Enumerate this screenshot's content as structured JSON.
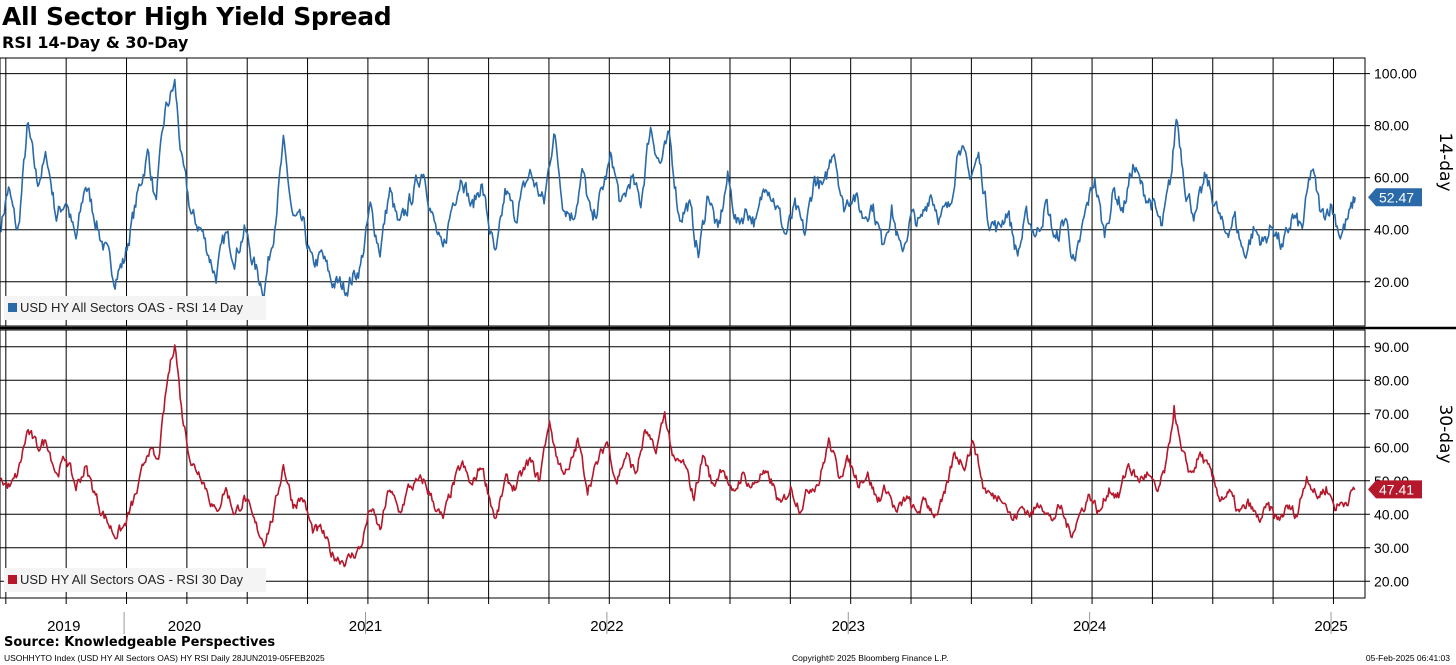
{
  "header": {
    "title": "All Sector High Yield Spread",
    "subtitle": "RSI 14-Day & 30-Day"
  },
  "footer": {
    "source": "Source: Knowledgeable Perspectives",
    "index_info": "USOHHYTO Index (USD HY All Sectors OAS) HY RSI  Daily 28JUN2019-05FEB2025",
    "copyright": "Copyright© 2025 Bloomberg Finance L.P.",
    "timestamp": "05-Feb-2025 06:41:03"
  },
  "colors": {
    "series_14": "#2a6aa8",
    "series_30": "#b5172b",
    "grid": "#000000"
  },
  "chart_data": [
    {
      "type": "line",
      "id": "rsi14",
      "side_label": "14-day",
      "legend": "USD HY All Sectors OAS - RSI 14 Day",
      "last_value_label": "52.47",
      "ylim": [
        3,
        106
      ],
      "yticks": [
        20,
        40,
        60,
        80,
        100
      ],
      "ytick_labels": [
        "20.00",
        "40.00",
        "60.00",
        "80.00",
        "100.00"
      ],
      "x_start": 2019.49,
      "x_end": 2025.1,
      "anchors": [
        [
          2019.49,
          42
        ],
        [
          2019.52,
          56
        ],
        [
          2019.56,
          38
        ],
        [
          2019.6,
          80
        ],
        [
          2019.64,
          58
        ],
        [
          2019.68,
          68
        ],
        [
          2019.72,
          45
        ],
        [
          2019.76,
          52
        ],
        [
          2019.8,
          35
        ],
        [
          2019.84,
          58
        ],
        [
          2019.9,
          38
        ],
        [
          2019.96,
          22
        ],
        [
          2020.0,
          28
        ],
        [
          2020.06,
          55
        ],
        [
          2020.1,
          70
        ],
        [
          2020.13,
          50
        ],
        [
          2020.17,
          85
        ],
        [
          2020.21,
          96
        ],
        [
          2020.24,
          65
        ],
        [
          2020.28,
          45
        ],
        [
          2020.32,
          40
        ],
        [
          2020.38,
          22
        ],
        [
          2020.42,
          38
        ],
        [
          2020.46,
          30
        ],
        [
          2020.5,
          40
        ],
        [
          2020.54,
          26
        ],
        [
          2020.58,
          17
        ],
        [
          2020.62,
          40
        ],
        [
          2020.66,
          72
        ],
        [
          2020.7,
          44
        ],
        [
          2020.74,
          42
        ],
        [
          2020.78,
          26
        ],
        [
          2020.82,
          30
        ],
        [
          2020.86,
          20
        ],
        [
          2020.92,
          18
        ],
        [
          2020.98,
          26
        ],
        [
          2021.02,
          48
        ],
        [
          2021.06,
          32
        ],
        [
          2021.1,
          55
        ],
        [
          2021.14,
          40
        ],
        [
          2021.18,
          50
        ],
        [
          2021.24,
          64
        ],
        [
          2021.28,
          44
        ],
        [
          2021.32,
          30
        ],
        [
          2021.36,
          50
        ],
        [
          2021.4,
          62
        ],
        [
          2021.44,
          48
        ],
        [
          2021.48,
          58
        ],
        [
          2021.54,
          28
        ],
        [
          2021.58,
          55
        ],
        [
          2021.62,
          45
        ],
        [
          2021.68,
          62
        ],
        [
          2021.74,
          50
        ],
        [
          2021.78,
          78
        ],
        [
          2021.82,
          50
        ],
        [
          2021.86,
          45
        ],
        [
          2021.9,
          62
        ],
        [
          2021.94,
          42
        ],
        [
          2021.98,
          55
        ],
        [
          2022.02,
          68
        ],
        [
          2022.06,
          48
        ],
        [
          2022.1,
          60
        ],
        [
          2022.14,
          50
        ],
        [
          2022.18,
          80
        ],
        [
          2022.22,
          65
        ],
        [
          2022.26,
          75
        ],
        [
          2022.3,
          45
        ],
        [
          2022.34,
          50
        ],
        [
          2022.38,
          30
        ],
        [
          2022.42,
          55
        ],
        [
          2022.46,
          38
        ],
        [
          2022.5,
          60
        ],
        [
          2022.54,
          42
        ],
        [
          2022.58,
          48
        ],
        [
          2022.62,
          42
        ],
        [
          2022.66,
          60
        ],
        [
          2022.7,
          50
        ],
        [
          2022.74,
          38
        ],
        [
          2022.78,
          48
        ],
        [
          2022.82,
          38
        ],
        [
          2022.86,
          60
        ],
        [
          2022.9,
          55
        ],
        [
          2022.94,
          73
        ],
        [
          2022.98,
          48
        ],
        [
          2023.02,
          55
        ],
        [
          2023.06,
          45
        ],
        [
          2023.1,
          50
        ],
        [
          2023.14,
          35
        ],
        [
          2023.18,
          48
        ],
        [
          2023.22,
          30
        ],
        [
          2023.26,
          45
        ],
        [
          2023.3,
          42
        ],
        [
          2023.34,
          55
        ],
        [
          2023.38,
          45
        ],
        [
          2023.42,
          48
        ],
        [
          2023.46,
          75
        ],
        [
          2023.5,
          60
        ],
        [
          2023.54,
          68
        ],
        [
          2023.58,
          45
        ],
        [
          2023.62,
          40
        ],
        [
          2023.66,
          48
        ],
        [
          2023.7,
          30
        ],
        [
          2023.74,
          45
        ],
        [
          2023.78,
          38
        ],
        [
          2023.82,
          50
        ],
        [
          2023.86,
          35
        ],
        [
          2023.9,
          45
        ],
        [
          2023.94,
          25
        ],
        [
          2023.98,
          45
        ],
        [
          2024.02,
          60
        ],
        [
          2024.06,
          38
        ],
        [
          2024.1,
          55
        ],
        [
          2024.14,
          48
        ],
        [
          2024.18,
          65
        ],
        [
          2024.22,
          55
        ],
        [
          2024.26,
          50
        ],
        [
          2024.3,
          40
        ],
        [
          2024.34,
          62
        ],
        [
          2024.36,
          84
        ],
        [
          2024.4,
          55
        ],
        [
          2024.44,
          45
        ],
        [
          2024.48,
          60
        ],
        [
          2024.52,
          50
        ],
        [
          2024.56,
          38
        ],
        [
          2024.6,
          45
        ],
        [
          2024.64,
          30
        ],
        [
          2024.68,
          40
        ],
        [
          2024.72,
          35
        ],
        [
          2024.76,
          42
        ],
        [
          2024.8,
          32
        ],
        [
          2024.84,
          45
        ],
        [
          2024.88,
          40
        ],
        [
          2024.92,
          64
        ],
        [
          2024.96,
          45
        ],
        [
          2025.0,
          50
        ],
        [
          2025.04,
          38
        ],
        [
          2025.08,
          46
        ],
        [
          2025.1,
          52.47
        ]
      ]
    },
    {
      "type": "line",
      "id": "rsi30",
      "side_label": "30-day",
      "legend": "USD HY All Sectors OAS - RSI 30 Day",
      "last_value_label": "47.41",
      "ylim": [
        15,
        95
      ],
      "yticks": [
        20,
        30,
        40,
        50,
        60,
        70,
        80,
        90
      ],
      "ytick_labels": [
        "20.00",
        "30.00",
        "40.00",
        "50.00",
        "60.00",
        "70.00",
        "80.00",
        "90.00"
      ],
      "x_start": 2019.49,
      "x_end": 2025.1,
      "anchors": [
        [
          2019.49,
          50
        ],
        [
          2019.53,
          48
        ],
        [
          2019.56,
          52
        ],
        [
          2019.6,
          65
        ],
        [
          2019.64,
          60
        ],
        [
          2019.68,
          62
        ],
        [
          2019.72,
          52
        ],
        [
          2019.76,
          57
        ],
        [
          2019.8,
          48
        ],
        [
          2019.84,
          54
        ],
        [
          2019.9,
          42
        ],
        [
          2019.96,
          34
        ],
        [
          2020.0,
          36
        ],
        [
          2020.06,
          48
        ],
        [
          2020.1,
          60
        ],
        [
          2020.14,
          55
        ],
        [
          2020.18,
          80
        ],
        [
          2020.21,
          92
        ],
        [
          2020.24,
          70
        ],
        [
          2020.28,
          55
        ],
        [
          2020.32,
          52
        ],
        [
          2020.38,
          40
        ],
        [
          2020.42,
          48
        ],
        [
          2020.46,
          40
        ],
        [
          2020.5,
          45
        ],
        [
          2020.54,
          37
        ],
        [
          2020.58,
          32
        ],
        [
          2020.62,
          40
        ],
        [
          2020.66,
          55
        ],
        [
          2020.7,
          43
        ],
        [
          2020.74,
          45
        ],
        [
          2020.78,
          35
        ],
        [
          2020.82,
          35
        ],
        [
          2020.86,
          28
        ],
        [
          2020.92,
          26
        ],
        [
          2020.98,
          30
        ],
        [
          2021.02,
          42
        ],
        [
          2021.06,
          35
        ],
        [
          2021.1,
          48
        ],
        [
          2021.14,
          40
        ],
        [
          2021.18,
          48
        ],
        [
          2021.24,
          50
        ],
        [
          2021.28,
          44
        ],
        [
          2021.32,
          38
        ],
        [
          2021.36,
          48
        ],
        [
          2021.4,
          55
        ],
        [
          2021.44,
          48
        ],
        [
          2021.48,
          55
        ],
        [
          2021.54,
          38
        ],
        [
          2021.58,
          50
        ],
        [
          2021.62,
          48
        ],
        [
          2021.68,
          56
        ],
        [
          2021.72,
          50
        ],
        [
          2021.76,
          68
        ],
        [
          2021.8,
          55
        ],
        [
          2021.84,
          52
        ],
        [
          2021.88,
          62
        ],
        [
          2021.92,
          48
        ],
        [
          2021.96,
          55
        ],
        [
          2022.0,
          62
        ],
        [
          2022.04,
          50
        ],
        [
          2022.08,
          58
        ],
        [
          2022.12,
          52
        ],
        [
          2022.16,
          65
        ],
        [
          2022.2,
          58
        ],
        [
          2022.24,
          70
        ],
        [
          2022.28,
          55
        ],
        [
          2022.32,
          55
        ],
        [
          2022.36,
          45
        ],
        [
          2022.4,
          58
        ],
        [
          2022.44,
          48
        ],
        [
          2022.48,
          55
        ],
        [
          2022.52,
          45
        ],
        [
          2022.56,
          52
        ],
        [
          2022.6,
          48
        ],
        [
          2022.64,
          52
        ],
        [
          2022.68,
          50
        ],
        [
          2022.72,
          42
        ],
        [
          2022.76,
          48
        ],
        [
          2022.8,
          42
        ],
        [
          2022.84,
          48
        ],
        [
          2022.88,
          50
        ],
        [
          2022.92,
          62
        ],
        [
          2022.96,
          52
        ],
        [
          2023.0,
          56
        ],
        [
          2023.04,
          50
        ],
        [
          2023.08,
          52
        ],
        [
          2023.12,
          44
        ],
        [
          2023.16,
          48
        ],
        [
          2023.2,
          40
        ],
        [
          2023.24,
          45
        ],
        [
          2023.28,
          40
        ],
        [
          2023.32,
          44
        ],
        [
          2023.36,
          40
        ],
        [
          2023.4,
          45
        ],
        [
          2023.44,
          58
        ],
        [
          2023.48,
          55
        ],
        [
          2023.52,
          62
        ],
        [
          2023.56,
          48
        ],
        [
          2023.6,
          45
        ],
        [
          2023.64,
          46
        ],
        [
          2023.68,
          38
        ],
        [
          2023.72,
          42
        ],
        [
          2023.76,
          40
        ],
        [
          2023.8,
          44
        ],
        [
          2023.84,
          38
        ],
        [
          2023.88,
          42
        ],
        [
          2023.92,
          34
        ],
        [
          2023.96,
          40
        ],
        [
          2024.0,
          46
        ],
        [
          2024.04,
          40
        ],
        [
          2024.08,
          48
        ],
        [
          2024.12,
          45
        ],
        [
          2024.16,
          55
        ],
        [
          2024.2,
          50
        ],
        [
          2024.24,
          52
        ],
        [
          2024.28,
          46
        ],
        [
          2024.32,
          55
        ],
        [
          2024.35,
          72
        ],
        [
          2024.38,
          58
        ],
        [
          2024.42,
          52
        ],
        [
          2024.46,
          58
        ],
        [
          2024.5,
          52
        ],
        [
          2024.54,
          45
        ],
        [
          2024.58,
          46
        ],
        [
          2024.62,
          40
        ],
        [
          2024.66,
          43
        ],
        [
          2024.7,
          38
        ],
        [
          2024.74,
          42
        ],
        [
          2024.78,
          38
        ],
        [
          2024.82,
          42
        ],
        [
          2024.86,
          40
        ],
        [
          2024.9,
          52
        ],
        [
          2024.94,
          45
        ],
        [
          2024.98,
          48
        ],
        [
          2025.02,
          42
        ],
        [
          2025.06,
          44
        ],
        [
          2025.1,
          47.41
        ]
      ]
    }
  ],
  "x_axis": {
    "years": [
      "2019",
      "2020",
      "2021",
      "2022",
      "2023",
      "2024",
      "2025"
    ],
    "year_values": [
      2019.75,
      2020.25,
      2021.0,
      2022.0,
      2023.0,
      2024.0,
      2025.0
    ],
    "year_boundaries": [
      2020.0,
      2021.0,
      2022.0,
      2023.0,
      2024.0,
      2025.0
    ],
    "gridlines": [
      2019.51,
      2019.76,
      2020.01,
      2020.26,
      2020.51,
      2020.76,
      2021.01,
      2021.26,
      2021.51,
      2021.76,
      2022.01,
      2022.26,
      2022.51,
      2022.76,
      2023.01,
      2023.26,
      2023.51,
      2023.76,
      2024.01,
      2024.26,
      2024.51,
      2024.76,
      2025.01
    ]
  }
}
